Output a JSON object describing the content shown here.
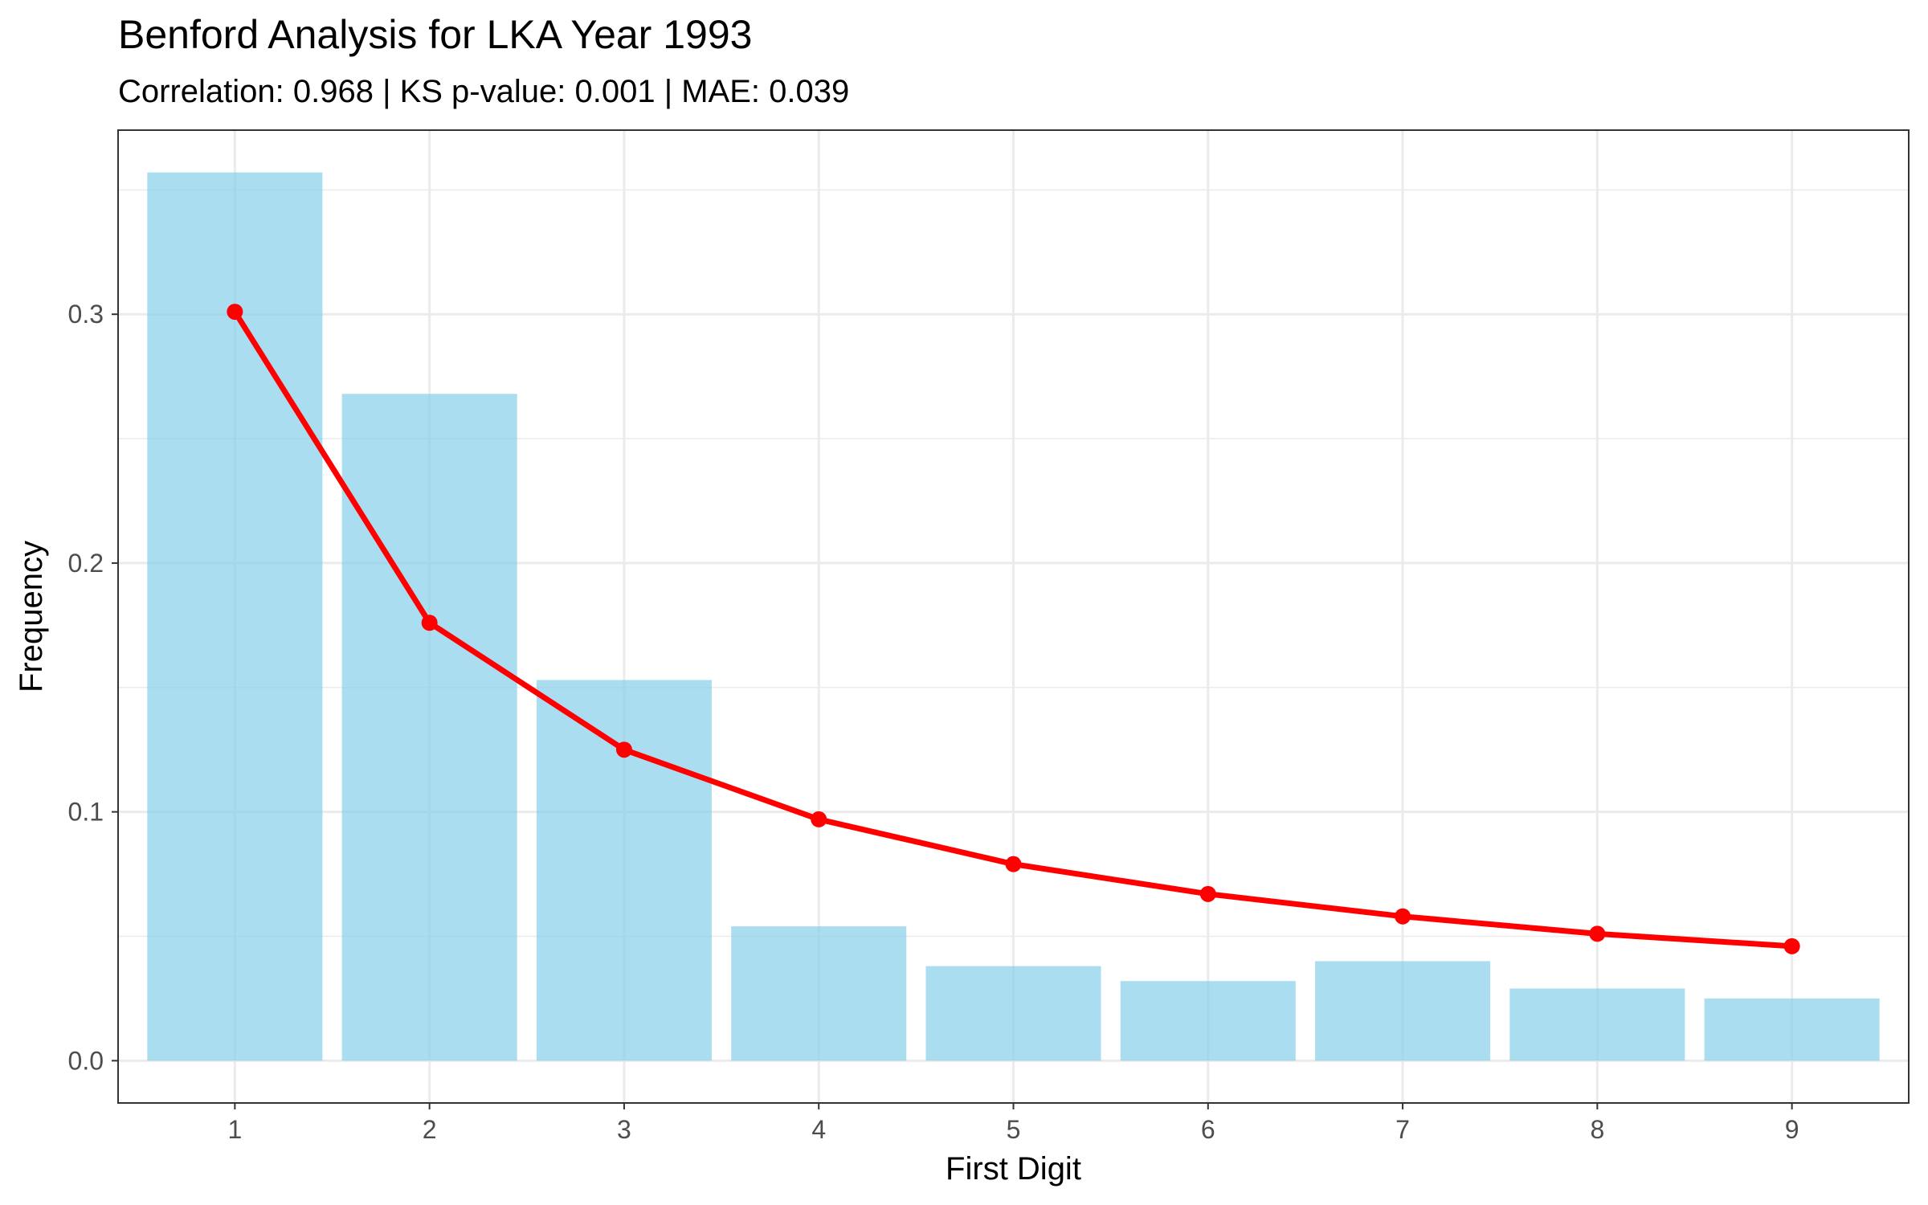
{
  "chart_data": {
    "type": "bar",
    "title": "Benford Analysis for LKA Year 1993",
    "subtitle": "Correlation: 0.968 | KS p-value: 0.001 | MAE: 0.039",
    "xlabel": "First Digit",
    "ylabel": "Frequency",
    "categories": [
      "1",
      "2",
      "3",
      "4",
      "5",
      "6",
      "7",
      "8",
      "9"
    ],
    "series": [
      {
        "kind": "bar",
        "values": [
          0.357,
          0.268,
          0.153,
          0.054,
          0.038,
          0.032,
          0.04,
          0.029,
          0.025
        ],
        "color": "#87CEEB"
      },
      {
        "kind": "line",
        "values": [
          0.301,
          0.176,
          0.125,
          0.097,
          0.079,
          0.067,
          0.058,
          0.051,
          0.046
        ],
        "color": "#FF0000"
      }
    ],
    "ylim": [
      -0.017,
      0.374
    ],
    "yticks": [
      0.0,
      0.1,
      0.2,
      0.3
    ],
    "ytick_labels": [
      "0.0",
      "0.1",
      "0.2",
      "0.3"
    ],
    "grid": true,
    "legend": "none"
  }
}
